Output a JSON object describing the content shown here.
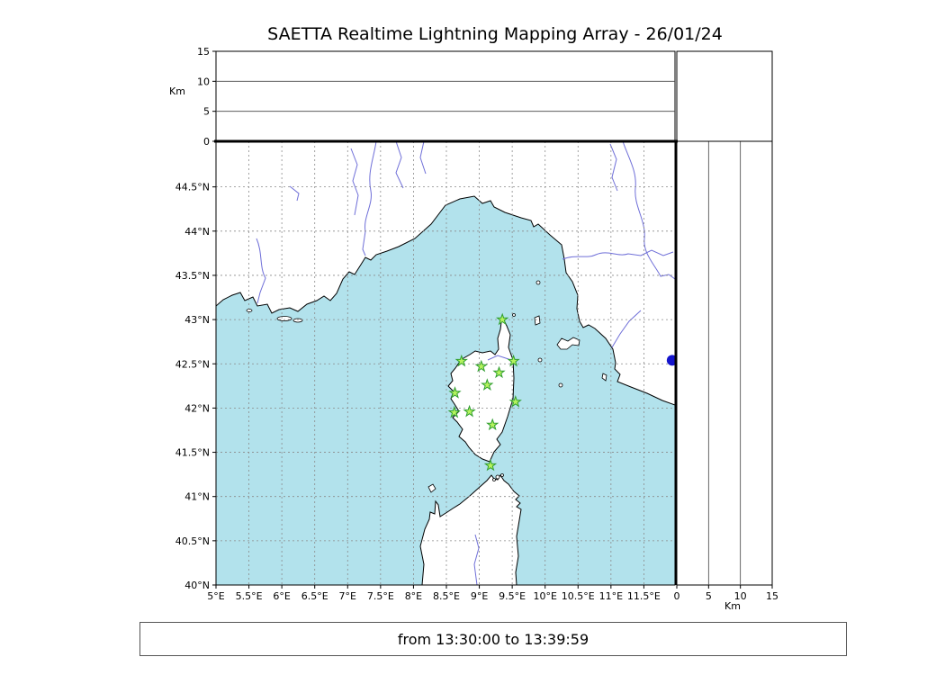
{
  "title": "SAETTA Realtime Lightning Mapping Array - 26/01/24",
  "footer": "from 13:30:00 to 13:39:59",
  "axes": {
    "km_label": "Km",
    "km_ticks": [
      0,
      5,
      10,
      15
    ],
    "lat_ticks": [
      {
        "value": 40.0,
        "label": "40°N"
      },
      {
        "value": 40.5,
        "label": "40.5°N"
      },
      {
        "value": 41.0,
        "label": "41°N"
      },
      {
        "value": 41.5,
        "label": "41.5°N"
      },
      {
        "value": 42.0,
        "label": "42°N"
      },
      {
        "value": 42.5,
        "label": "42.5°N"
      },
      {
        "value": 43.0,
        "label": "43°N"
      },
      {
        "value": 43.5,
        "label": "43.5°N"
      },
      {
        "value": 44.0,
        "label": "44°N"
      },
      {
        "value": 44.5,
        "label": "44.5°N"
      }
    ],
    "lon_ticks": [
      {
        "value": 5.0,
        "label": "5°E"
      },
      {
        "value": 5.5,
        "label": "5.5°E"
      },
      {
        "value": 6.0,
        "label": "6°E"
      },
      {
        "value": 6.5,
        "label": "6.5°E"
      },
      {
        "value": 7.0,
        "label": "7°E"
      },
      {
        "value": 7.5,
        "label": "7.5°E"
      },
      {
        "value": 8.0,
        "label": "8°E"
      },
      {
        "value": 8.5,
        "label": "8.5°E"
      },
      {
        "value": 9.0,
        "label": "9°E"
      },
      {
        "value": 9.5,
        "label": "9.5°E"
      },
      {
        "value": 10.0,
        "label": "10°E"
      },
      {
        "value": 10.5,
        "label": "10.5°E"
      },
      {
        "value": 11.0,
        "label": "11°E"
      },
      {
        "value": 11.5,
        "label": "11.5°E"
      }
    ]
  },
  "colors": {
    "sea": "#b2e2ec",
    "land": "#ffffff",
    "river": "#6f6fd8",
    "grid": "#8a8a8a",
    "star_fill": "#b5f35e",
    "star_stroke": "#2f9e2f",
    "dot": "#1414cc"
  },
  "chart_data": {
    "type": "scatter",
    "title": "SAETTA Realtime Lightning Mapping Array - 26/01/24",
    "x_axis": {
      "unit": "°E",
      "range": [
        5.0,
        11.97
      ],
      "ticks": [
        5,
        5.5,
        6,
        6.5,
        7,
        7.5,
        8,
        8.5,
        9,
        9.5,
        10,
        10.5,
        11,
        11.5
      ]
    },
    "y_axis": {
      "unit": "°N",
      "range": [
        40.0,
        45.01
      ],
      "ticks": [
        40,
        40.5,
        41,
        41.5,
        42,
        42.5,
        43,
        43.5,
        44,
        44.5
      ]
    },
    "altitude_axes": {
      "label": "Km",
      "range": [
        0,
        15
      ],
      "ticks": [
        0,
        5,
        10,
        15
      ]
    },
    "grid": true,
    "series": [
      {
        "name": "SAETTA station markers",
        "marker": "star",
        "color": "#b5f35e",
        "points": [
          [
            9.35,
            43.0
          ],
          [
            8.73,
            42.53
          ],
          [
            9.03,
            42.47
          ],
          [
            9.52,
            42.53
          ],
          [
            9.3,
            42.4
          ],
          [
            9.12,
            42.26
          ],
          [
            8.63,
            42.17
          ],
          [
            9.55,
            42.07
          ],
          [
            8.62,
            41.95
          ],
          [
            8.85,
            41.96
          ],
          [
            9.2,
            41.81
          ],
          [
            9.17,
            41.35
          ]
        ]
      },
      {
        "name": "right-edge marker",
        "marker": "circle",
        "color": "#1414cc",
        "points": [
          [
            11.93,
            42.54
          ]
        ]
      }
    ],
    "annotations": [
      "from 13:30:00 to 13:39:59"
    ]
  }
}
